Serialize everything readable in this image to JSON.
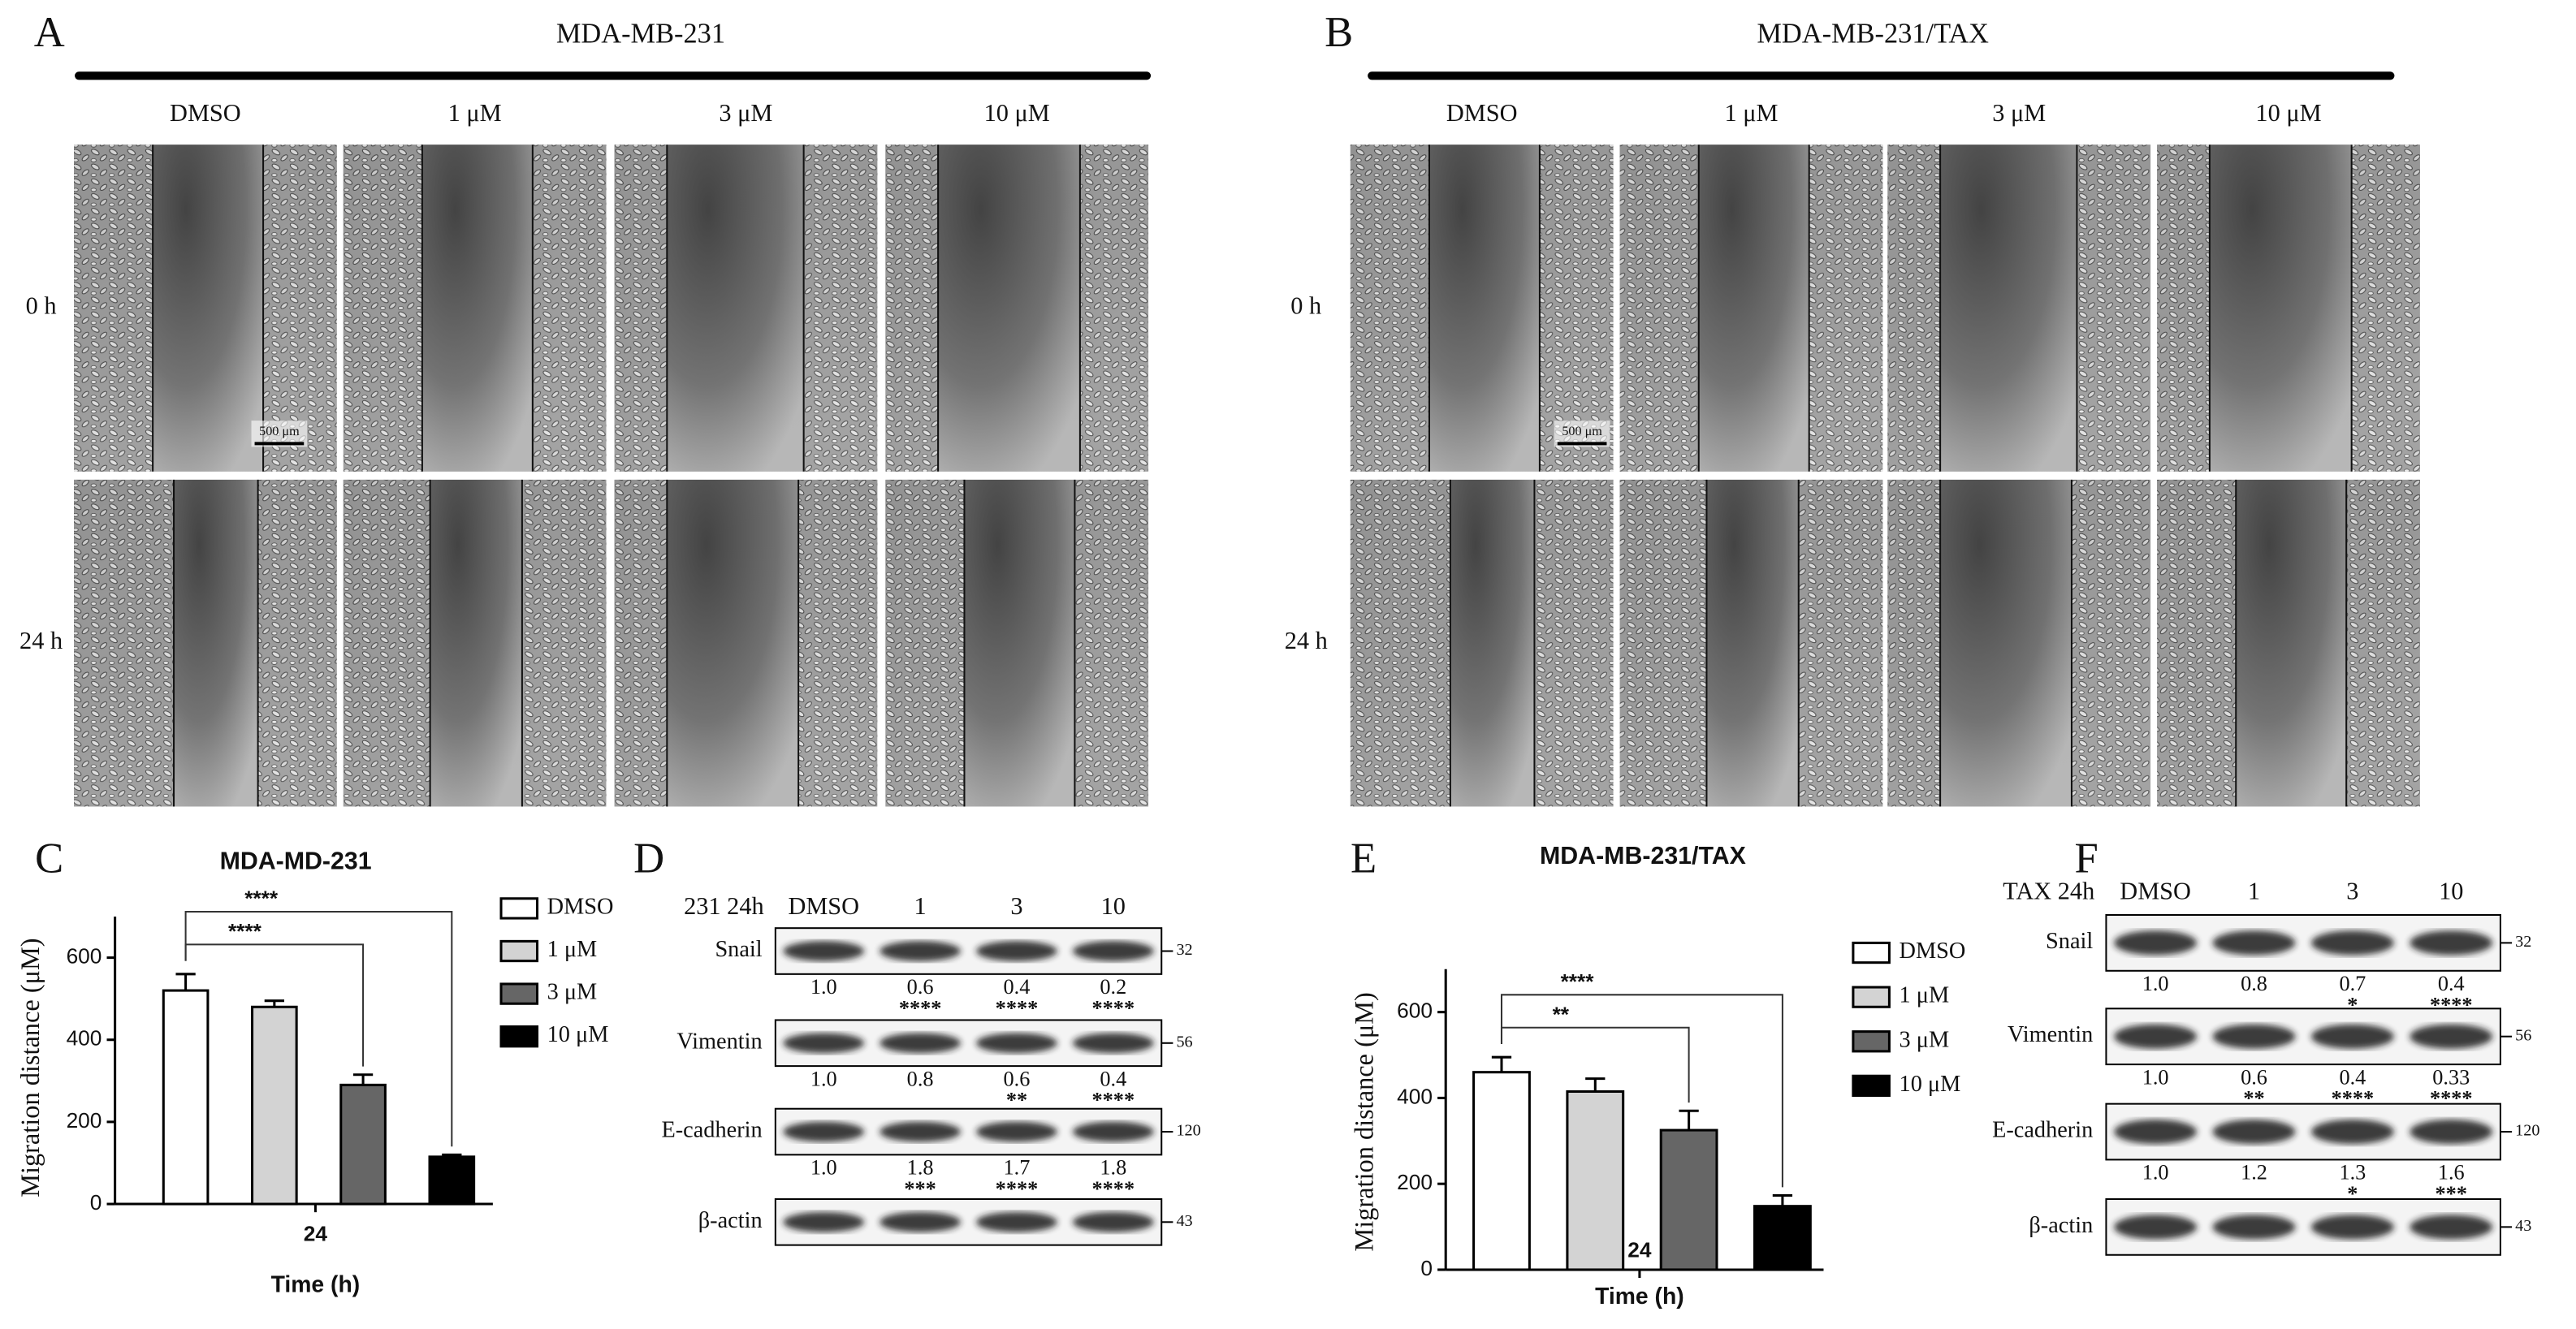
{
  "panels": [
    {
      "label": "A",
      "title": "MDA-MB-231",
      "columns": [
        "DMSO",
        "1 μM",
        "3 μM",
        "10 μM"
      ],
      "rows": [
        "0 h",
        "24 h"
      ],
      "scale_bar": "500 μm"
    },
    {
      "label": "B",
      "title": "MDA-MB-231/TAX",
      "columns": [
        "DMSO",
        "1 μM",
        "3 μM",
        "10 μM"
      ],
      "rows": [
        "0 h",
        "24 h"
      ],
      "scale_bar": "500 μm"
    }
  ],
  "chart_data": [
    {
      "type": "bar",
      "label": "C",
      "title": "MDA-MD-231",
      "y_label": "Migration distance (μM)",
      "x_label": "Time (h)",
      "categories": [
        "24"
      ],
      "series": [
        {
          "name": "DMSO",
          "color": "#ffffff",
          "values": [
            520
          ],
          "errors": [
            40
          ]
        },
        {
          "name": "1 μM",
          "color": "#d3d3d3",
          "values": [
            480
          ],
          "errors": [
            15
          ]
        },
        {
          "name": "3 μM",
          "color": "#666666",
          "values": [
            290
          ],
          "errors": [
            25
          ],
          "significance": "****"
        },
        {
          "name": "10 μM",
          "color": "#000000",
          "values": [
            115
          ],
          "errors": [
            5
          ],
          "significance": "****"
        }
      ],
      "ylim": [
        0,
        700
      ],
      "yticks": [
        0,
        200,
        400,
        600
      ]
    },
    {
      "type": "bar",
      "label": "E",
      "title": "MDA-MB-231/TAX",
      "y_label": "Migration distance (μM)",
      "x_label": "Time (h)",
      "categories": [
        "24"
      ],
      "series": [
        {
          "name": "DMSO",
          "color": "#ffffff",
          "values": [
            460
          ],
          "errors": [
            35
          ]
        },
        {
          "name": "1 μM",
          "color": "#d3d3d3",
          "values": [
            415
          ],
          "errors": [
            30
          ]
        },
        {
          "name": "3 μM",
          "color": "#666666",
          "values": [
            325
          ],
          "errors": [
            45
          ],
          "significance": "**"
        },
        {
          "name": "10 μM",
          "color": "#000000",
          "values": [
            148
          ],
          "errors": [
            25
          ],
          "significance": "****"
        }
      ],
      "ylim": [
        0,
        700
      ],
      "yticks": [
        0,
        200,
        400,
        600
      ]
    }
  ],
  "blots": [
    {
      "label": "D",
      "header": "231 24h",
      "lanes": [
        "DMSO",
        "1",
        "3",
        "10"
      ],
      "proteins": [
        {
          "name": "Snail",
          "mw": "32",
          "ratios": [
            "1.0",
            "0.6",
            "0.4",
            "0.2"
          ],
          "stars": [
            null,
            "****",
            "****",
            "****"
          ]
        },
        {
          "name": "Vimentin",
          "mw": "56",
          "ratios": [
            "1.0",
            "0.8",
            "0.6",
            "0.4"
          ],
          "stars": [
            null,
            null,
            "**",
            "****"
          ]
        },
        {
          "name": "E-cadherin",
          "mw": "120",
          "ratios": [
            "1.0",
            "1.8",
            "1.7",
            "1.8"
          ],
          "stars": [
            null,
            "***",
            "****",
            "****"
          ]
        },
        {
          "name": "β-actin",
          "mw": "43"
        }
      ]
    },
    {
      "label": "F",
      "header": "TAX 24h",
      "lanes": [
        "DMSO",
        "1",
        "3",
        "10"
      ],
      "proteins": [
        {
          "name": "Snail",
          "mw": "32",
          "ratios": [
            "1.0",
            "0.8",
            "0.7",
            "0.4"
          ],
          "stars": [
            null,
            null,
            "*",
            "****"
          ]
        },
        {
          "name": "Vimentin",
          "mw": "56",
          "ratios": [
            "1.0",
            "0.6",
            "0.4",
            "0.33"
          ],
          "stars": [
            null,
            "**",
            "****",
            "****"
          ]
        },
        {
          "name": "E-cadherin",
          "mw": "120",
          "ratios": [
            "1.0",
            "1.2",
            "1.3",
            "1.6"
          ],
          "stars": [
            null,
            null,
            "*",
            "***"
          ]
        },
        {
          "name": "β-actin",
          "mw": "43"
        }
      ]
    }
  ]
}
